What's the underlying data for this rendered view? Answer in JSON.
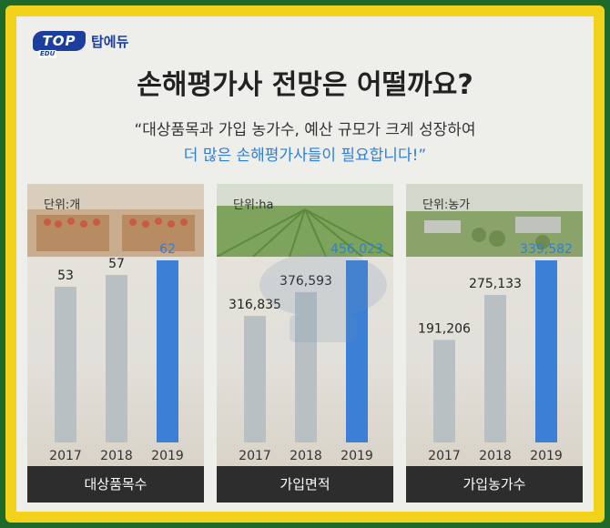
{
  "logo": {
    "mark": "TOP",
    "mark_sub": "EDU",
    "text": "탑에듀"
  },
  "header": {
    "title": "손해평가사 전망은 어떨까요?",
    "subtitle_line1": "“대상품목과 가입 농가수, 예산 규모가 크게 성장하여",
    "subtitle_line2": "더 많은 손해평가사들이 필요합니다!”"
  },
  "colors": {
    "bar_gray": "#b9c0c3",
    "bar_blue": "#3b7fd6",
    "value_blue": "#2f7fd6",
    "footer": "#2d2d2d"
  },
  "chart_data": [
    {
      "type": "bar",
      "unit": "단위:개",
      "footer": "대상품목수",
      "categories": [
        "2017",
        "2018",
        "2019"
      ],
      "values": [
        53,
        57,
        62
      ],
      "value_labels": [
        "53",
        "57",
        "62"
      ],
      "highlight_index": 2
    },
    {
      "type": "bar",
      "unit": "단위:ha",
      "footer": "가입면적",
      "categories": [
        "2017",
        "2018",
        "2019"
      ],
      "values": [
        316835,
        376593,
        456023
      ],
      "value_labels": [
        "316,835",
        "376,593",
        "456,023"
      ],
      "highlight_index": 2
    },
    {
      "type": "bar",
      "unit": "단위:농가",
      "footer": "가입농가수",
      "categories": [
        "2017",
        "2018",
        "2019"
      ],
      "values": [
        191206,
        275133,
        339582
      ],
      "value_labels": [
        "191,206",
        "275,133",
        "339,582"
      ],
      "highlight_index": 2
    }
  ]
}
